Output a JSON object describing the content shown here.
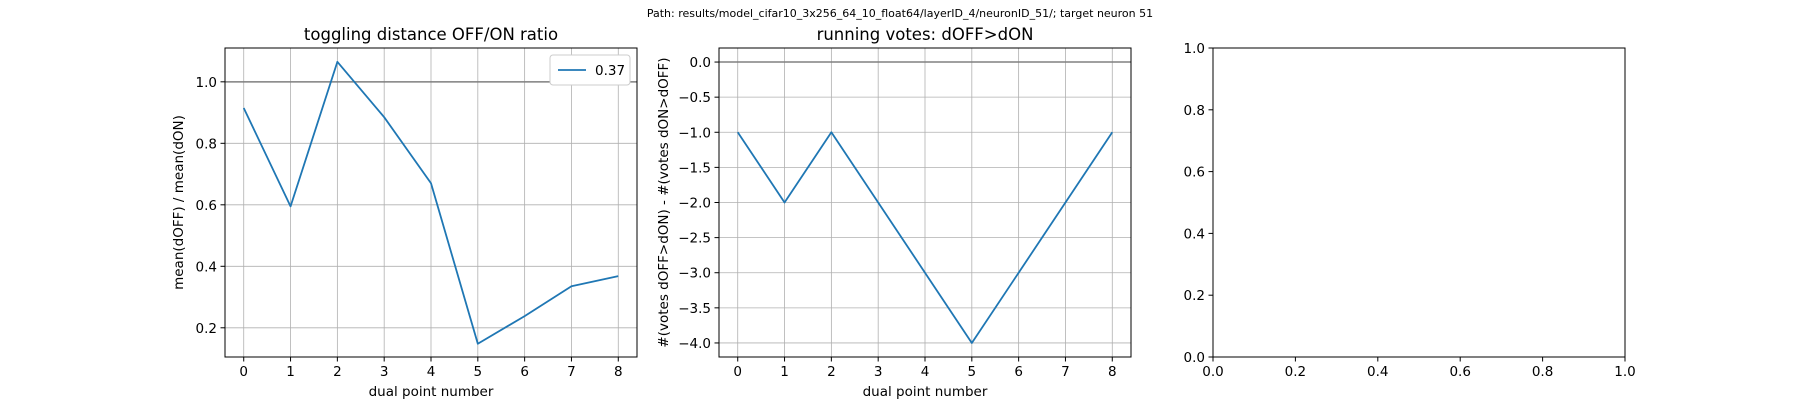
{
  "figure": {
    "suptitle": "Path: results/model_cifar10_3x256_64_10_float64/layerID_4/neuronID_51/; target neuron 51"
  },
  "chart_data": [
    {
      "type": "line",
      "title": "toggling distance OFF/ON ratio",
      "xlabel": "dual point number",
      "ylabel": "mean(dOFF) / mean(dON)",
      "xlim": [
        -0.4,
        8.4
      ],
      "ylim": [
        0.105,
        1.11
      ],
      "xticks": [
        0,
        1,
        2,
        3,
        4,
        5,
        6,
        7,
        8
      ],
      "yticks": [
        0.2,
        0.4,
        0.6,
        0.8,
        1.0
      ],
      "ytick_labels": [
        "0.2",
        "0.4",
        "0.6",
        "0.8",
        "1.0"
      ],
      "grid": true,
      "legend": "top-right",
      "reference_line": 1.0,
      "series": [
        {
          "name": "0.37",
          "color": "#1f77b4",
          "x": [
            0,
            1,
            2,
            3,
            4,
            5,
            6,
            7,
            8
          ],
          "y": [
            0.915,
            0.595,
            1.065,
            0.885,
            0.67,
            0.148,
            0.238,
            0.335,
            0.368
          ]
        }
      ]
    },
    {
      "type": "line",
      "title": "running votes: dOFF>dON",
      "xlabel": "dual point number",
      "ylabel": "#(votes dOFF>dON) - #(votes dON>dOFF)",
      "xlim": [
        -0.4,
        8.4
      ],
      "ylim": [
        -4.2,
        0.2
      ],
      "xticks": [
        0,
        1,
        2,
        3,
        4,
        5,
        6,
        7,
        8
      ],
      "yticks": [
        0.0,
        -0.5,
        -1.0,
        -1.5,
        -2.0,
        -2.5,
        -3.0,
        -3.5,
        -4.0
      ],
      "ytick_labels": [
        "0.0",
        "−0.5",
        "−1.0",
        "−1.5",
        "−2.0",
        "−2.5",
        "−3.0",
        "−3.5",
        "−4.0"
      ],
      "grid": true,
      "reference_line": 0.0,
      "series": [
        {
          "color": "#1f77b4",
          "x": [
            0,
            1,
            2,
            3,
            4,
            5,
            6,
            7,
            8
          ],
          "y": [
            -1,
            -2,
            -1,
            -2,
            -3,
            -4,
            -3,
            -2,
            -1
          ]
        }
      ]
    },
    {
      "type": "line",
      "title": "",
      "xlabel": "",
      "ylabel": "",
      "xlim": [
        0,
        1
      ],
      "ylim": [
        0,
        1
      ],
      "xticks": [
        0.0,
        0.2,
        0.4,
        0.6,
        0.8,
        1.0
      ],
      "yticks": [
        0.0,
        0.2,
        0.4,
        0.6,
        0.8,
        1.0
      ],
      "xtick_labels": [
        "0.0",
        "0.2",
        "0.4",
        "0.6",
        "0.8",
        "1.0"
      ],
      "ytick_labels": [
        "0.0",
        "0.2",
        "0.4",
        "0.6",
        "0.8",
        "1.0"
      ],
      "grid": false,
      "series": []
    }
  ]
}
